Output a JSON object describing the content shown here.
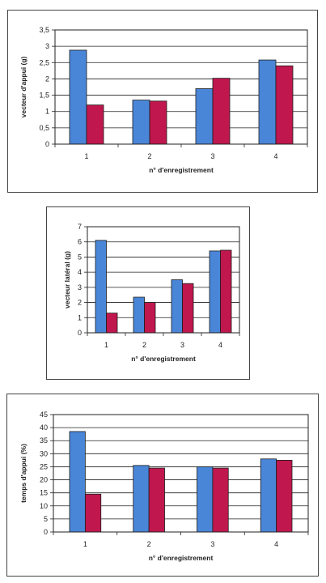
{
  "colors": {
    "series_1": "#4a86d8",
    "series_2": "#c0174e",
    "bar_edge": "#1c1c1c",
    "grid": "#222222",
    "axis": "#222222"
  },
  "chart_data": [
    {
      "type": "bar",
      "categories": [
        "1",
        "2",
        "3",
        "4"
      ],
      "series": [
        {
          "values": [
            2.88,
            1.35,
            1.7,
            2.58
          ]
        },
        {
          "values": [
            1.2,
            1.32,
            2.02,
            2.4
          ]
        }
      ],
      "title": "",
      "xlabel": "n° d'enregistrement",
      "ylabel": "vecteur d'appui (g)",
      "ylim": [
        0,
        3.5
      ],
      "yticks": [
        "0",
        "0,5",
        "1",
        "1,5",
        "2",
        "2,5",
        "3",
        "3,5"
      ],
      "grid": true,
      "legend": "none"
    },
    {
      "type": "bar",
      "categories": [
        "1",
        "2",
        "3",
        "4"
      ],
      "series": [
        {
          "values": [
            6.1,
            2.35,
            3.5,
            5.4
          ]
        },
        {
          "values": [
            1.3,
            2.0,
            3.25,
            5.45
          ]
        }
      ],
      "title": "",
      "xlabel": "n° d'enregistrement",
      "ylabel": "vecteur latéral (g)",
      "ylim": [
        0,
        7
      ],
      "yticks": [
        "0",
        "1",
        "2",
        "3",
        "4",
        "5",
        "6",
        "7"
      ],
      "grid": true,
      "legend": "none"
    },
    {
      "type": "bar",
      "categories": [
        "1",
        "2",
        "3",
        "4"
      ],
      "series": [
        {
          "values": [
            38.5,
            25.5,
            25.0,
            28.0
          ]
        },
        {
          "values": [
            14.5,
            24.5,
            24.5,
            27.5
          ]
        }
      ],
      "title": "",
      "xlabel": "n° d'enregistrement",
      "ylabel": "temps d'appui (%)",
      "ylim": [
        0,
        45
      ],
      "yticks": [
        "0",
        "5",
        "10",
        "15",
        "20",
        "25",
        "30",
        "35",
        "40",
        "45"
      ],
      "grid": true,
      "legend": "none"
    }
  ]
}
